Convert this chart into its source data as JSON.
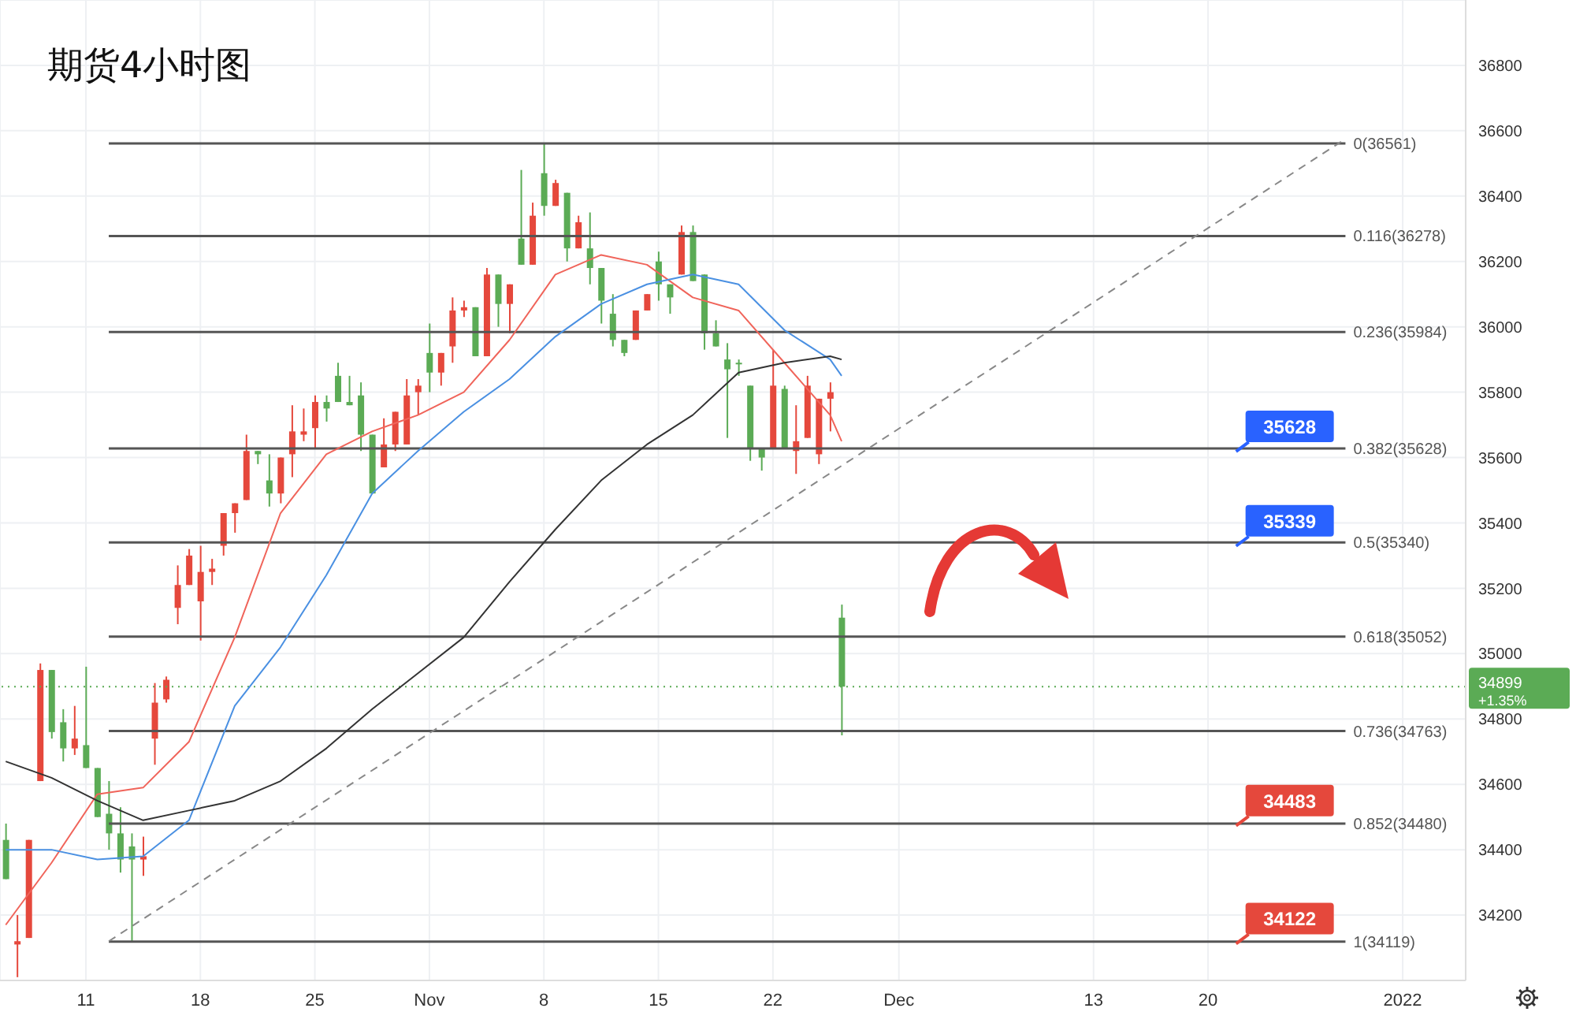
{
  "chart_data": {
    "type": "candlestick",
    "title": "期货4小时图",
    "categories": [
      null,
      null,
      null,
      null,
      null,
      null,
      null,
      "11",
      null,
      null,
      null,
      null,
      null,
      null,
      null,
      null,
      null,
      "18",
      null,
      null,
      null,
      null,
      null,
      null,
      null,
      null,
      null,
      "25",
      null,
      null,
      null,
      null,
      null,
      null,
      null,
      null,
      null,
      "Nov",
      null,
      null,
      null,
      null,
      null,
      null,
      null,
      null,
      null,
      "8",
      null,
      null,
      null,
      null,
      null,
      null,
      null,
      null,
      null,
      "15",
      null,
      null,
      null,
      null,
      null,
      null,
      null,
      null,
      null,
      "22",
      null,
      null,
      null,
      null,
      null,
      null,
      null,
      null,
      null,
      null,
      "Dec",
      null,
      null,
      null,
      null,
      null,
      null,
      null,
      null,
      null,
      null,
      null,
      null,
      null,
      null,
      null,
      null,
      "13",
      null,
      null,
      null,
      null,
      null,
      null,
      null,
      null,
      null,
      "20",
      null,
      null,
      null,
      null,
      null,
      null,
      null,
      null,
      null,
      null,
      null,
      null,
      null,
      null,
      null,
      null,
      "2022",
      null,
      null,
      null,
      null,
      null
    ],
    "ohlc": [
      [
        34430,
        34480,
        34310,
        34310
      ],
      [
        34110,
        34200,
        34010,
        34120
      ],
      [
        34130,
        34430,
        34130,
        34430
      ],
      [
        34610,
        34970,
        34610,
        34950
      ],
      [
        34950,
        34950,
        34740,
        34760
      ],
      [
        34790,
        34830,
        34670,
        34710
      ],
      [
        34710,
        34840,
        34690,
        34740
      ],
      [
        34720,
        34960,
        34650,
        34650
      ],
      [
        34650,
        34650,
        34500,
        34500
      ],
      [
        34510,
        34610,
        34400,
        34450
      ],
      [
        34450,
        34530,
        34330,
        34370
      ],
      [
        34410,
        34450,
        34120,
        34370
      ],
      [
        34370,
        34440,
        34320,
        34380
      ],
      [
        34740,
        34910,
        34660,
        34850
      ],
      [
        34860,
        34930,
        34850,
        34920
      ],
      [
        35140,
        35270,
        35090,
        35210
      ],
      [
        35210,
        35320,
        35210,
        35300
      ],
      [
        35160,
        35330,
        35040,
        35250
      ],
      [
        35250,
        35290,
        35210,
        35260
      ],
      [
        35330,
        35430,
        35300,
        35430
      ],
      [
        35430,
        35460,
        35370,
        35460
      ],
      [
        35470,
        35670,
        35470,
        35620
      ],
      [
        35620,
        35620,
        35580,
        35610
      ],
      [
        35530,
        35610,
        35450,
        35490
      ],
      [
        35490,
        35600,
        35460,
        35600
      ],
      [
        35610,
        35760,
        35540,
        35680
      ],
      [
        35670,
        35750,
        35650,
        35680
      ],
      [
        35690,
        35790,
        35630,
        35770
      ],
      [
        35770,
        35790,
        35710,
        35750
      ],
      [
        35850,
        35890,
        35770,
        35770
      ],
      [
        35770,
        35850,
        35760,
        35760
      ],
      [
        35790,
        35830,
        35620,
        35670
      ],
      [
        35670,
        35670,
        35490,
        35490
      ],
      [
        35570,
        35720,
        35570,
        35640
      ],
      [
        35640,
        35740,
        35620,
        35740
      ],
      [
        35640,
        35840,
        35640,
        35790
      ],
      [
        35800,
        35840,
        35730,
        35820
      ],
      [
        35920,
        36010,
        35800,
        35860
      ],
      [
        35860,
        35920,
        35820,
        35920
      ],
      [
        35940,
        36090,
        35890,
        36050
      ],
      [
        36050,
        36080,
        36030,
        36060
      ],
      [
        36060,
        36060,
        35910,
        35910
      ],
      [
        35910,
        36180,
        35910,
        36160
      ],
      [
        36160,
        36160,
        36000,
        36070
      ],
      [
        36070,
        36130,
        35980,
        36130
      ],
      [
        36270,
        36480,
        36190,
        36190
      ],
      [
        36190,
        36380,
        36190,
        36340
      ],
      [
        36470,
        36561,
        36340,
        36370
      ],
      [
        36370,
        36450,
        36370,
        36440
      ],
      [
        36410,
        36410,
        36200,
        36240
      ],
      [
        36240,
        36340,
        36240,
        36320
      ],
      [
        36240,
        36350,
        36130,
        36180
      ],
      [
        36180,
        36180,
        36010,
        36080
      ],
      [
        36040,
        36100,
        35940,
        35960
      ],
      [
        35960,
        35960,
        35910,
        35920
      ],
      [
        35960,
        36050,
        35960,
        36050
      ],
      [
        36050,
        36100,
        36050,
        36100
      ],
      [
        36200,
        36230,
        36080,
        36130
      ],
      [
        36130,
        36130,
        36040,
        36090
      ],
      [
        36160,
        36310,
        36160,
        36290
      ],
      [
        36290,
        36310,
        36140,
        36140
      ],
      [
        36160,
        36160,
        35930,
        35980
      ],
      [
        35980,
        36020,
        35940,
        35940
      ],
      [
        35900,
        35950,
        35660,
        35870
      ],
      [
        35890,
        35900,
        35850,
        35890
      ],
      [
        35820,
        35820,
        35590,
        35630
      ],
      [
        35630,
        35630,
        35560,
        35600
      ],
      [
        35630,
        35930,
        35630,
        35820
      ],
      [
        35810,
        35820,
        35630,
        35630
      ],
      [
        35620,
        35760,
        35550,
        35650
      ],
      [
        35660,
        35850,
        35660,
        35820
      ],
      [
        35610,
        35780,
        35580,
        35780
      ],
      [
        35780,
        35830,
        35680,
        35800
      ],
      [
        35110,
        35150,
        34750,
        34899
      ],
      null,
      null,
      null,
      null,
      null,
      null,
      null,
      null,
      null,
      null,
      null,
      null,
      null,
      null,
      null,
      null,
      null,
      null,
      null,
      null,
      null,
      null,
      null,
      null,
      null,
      null,
      null,
      null,
      null,
      null,
      null,
      null,
      null,
      null,
      null,
      null,
      null,
      null,
      null,
      null,
      null,
      null,
      null,
      null,
      null,
      null,
      null,
      null,
      null,
      null,
      null,
      null,
      null,
      null
    ],
    "colors": [
      "#5bab55",
      "#e5483c",
      "#e5483c",
      "#e5483c",
      "#5bab55",
      "#5bab55",
      "#e5483c",
      "#5bab55",
      "#5bab55",
      "#5bab55",
      "#5bab55",
      "#5bab55",
      "#e5483c",
      "#e5483c",
      "#e5483c",
      "#e5483c",
      "#e5483c",
      "#e5483c",
      "#e5483c",
      "#e5483c",
      "#e5483c",
      "#e5483c",
      "#5bab55",
      "#5bab55",
      "#e5483c",
      "#e5483c",
      "#e5483c",
      "#e5483c",
      "#5bab55",
      "#5bab55",
      "#5bab55",
      "#5bab55",
      "#5bab55",
      "#e5483c",
      "#e5483c",
      "#e5483c",
      "#e5483c",
      "#5bab55",
      "#e5483c",
      "#e5483c",
      "#e5483c",
      "#5bab55",
      "#e5483c",
      "#5bab55",
      "#e5483c",
      "#5bab55",
      "#e5483c",
      "#5bab55",
      "#e5483c",
      "#5bab55",
      "#e5483c",
      "#5bab55",
      "#5bab55",
      "#5bab55",
      "#5bab55",
      "#e5483c",
      "#e5483c",
      "#5bab55",
      "#5bab55",
      "#e5483c",
      "#5bab55",
      "#5bab55",
      "#5bab55",
      "#5bab55",
      "#5bab55",
      "#5bab55",
      "#5bab55",
      "#e5483c",
      "#5bab55",
      "#e5483c",
      "#e5483c",
      "#e5483c",
      "#e5483c",
      "#5bab55",
      null,
      null,
      null,
      null,
      null,
      null,
      null,
      null,
      null,
      null,
      null,
      null,
      null,
      null,
      null,
      null,
      null,
      null,
      null,
      null,
      null,
      null,
      null,
      null,
      null,
      null,
      null,
      null,
      null,
      null,
      null,
      null,
      null,
      null,
      null,
      null,
      null,
      null,
      null,
      null,
      null,
      null,
      null,
      null,
      null,
      null,
      null,
      null,
      null,
      null,
      null,
      null,
      null,
      null
    ],
    "series": [
      {
        "type": "line",
        "color": "#f0645a",
        "values": [
          34170,
          null,
          null,
          null,
          34360,
          null,
          null,
          null,
          34570,
          null,
          null,
          null,
          34590,
          null,
          null,
          null,
          34730,
          null,
          null,
          null,
          35050,
          null,
          null,
          null,
          35430,
          null,
          null,
          null,
          35610,
          null,
          null,
          null,
          35680,
          null,
          null,
          null,
          35730,
          null,
          null,
          null,
          35800,
          null,
          null,
          null,
          35960,
          null,
          null,
          null,
          36160,
          null,
          null,
          null,
          36220,
          null,
          null,
          null,
          36190,
          null,
          null,
          null,
          36090,
          null,
          null,
          null,
          36050,
          null,
          null,
          null,
          35890,
          null,
          null,
          null,
          35730,
          35650,
          null,
          null,
          null,
          null,
          null,
          null,
          null,
          null,
          null,
          null,
          null,
          null,
          null,
          null,
          null,
          null,
          null,
          null,
          null,
          null,
          null,
          null,
          null,
          null,
          null,
          null,
          null,
          null,
          null,
          null,
          null,
          null,
          null,
          null,
          null,
          null,
          null,
          null,
          null,
          null,
          null,
          null,
          null,
          null,
          null,
          null,
          null,
          null,
          null,
          null,
          null,
          null,
          null,
          null
        ]
      },
      {
        "type": "line",
        "color": "#4a90e2",
        "values": [
          34400,
          null,
          null,
          null,
          34400,
          null,
          null,
          null,
          34370,
          null,
          null,
          null,
          34380,
          null,
          null,
          null,
          34490,
          null,
          null,
          null,
          34840,
          null,
          null,
          null,
          35020,
          null,
          null,
          null,
          35240,
          null,
          null,
          null,
          35490,
          null,
          null,
          null,
          35620,
          null,
          null,
          null,
          35740,
          null,
          null,
          null,
          35840,
          null,
          null,
          null,
          35970,
          null,
          null,
          null,
          36070,
          null,
          null,
          null,
          36130,
          null,
          null,
          null,
          36160,
          null,
          null,
          null,
          36130,
          null,
          null,
          null,
          35990,
          null,
          null,
          null,
          35900,
          35850,
          null,
          null,
          null,
          null,
          null,
          null,
          null,
          null,
          null,
          null,
          null,
          null,
          null,
          null,
          null,
          null,
          null,
          null,
          null,
          null,
          null,
          null,
          null,
          null,
          null,
          null,
          null,
          null,
          null,
          null,
          null,
          null,
          null,
          null,
          null,
          null,
          null,
          null,
          null,
          null,
          null,
          null,
          null,
          null,
          null,
          null,
          null,
          null,
          null,
          null,
          null,
          null,
          null,
          null
        ]
      },
      {
        "type": "line",
        "color": "#333333",
        "values": [
          34670,
          null,
          null,
          null,
          34620,
          null,
          null,
          null,
          34550,
          null,
          null,
          null,
          34490,
          null,
          null,
          null,
          34520,
          null,
          null,
          null,
          34550,
          null,
          null,
          null,
          34610,
          null,
          null,
          null,
          34710,
          null,
          null,
          null,
          34830,
          null,
          null,
          null,
          34940,
          null,
          null,
          null,
          35050,
          null,
          null,
          null,
          35220,
          null,
          null,
          null,
          35380,
          null,
          null,
          null,
          35530,
          null,
          null,
          null,
          35640,
          null,
          null,
          null,
          35730,
          null,
          null,
          null,
          35860,
          null,
          null,
          null,
          35890,
          null,
          null,
          null,
          35910,
          35900,
          null,
          null,
          null,
          null,
          null,
          null,
          null,
          null,
          null,
          null,
          null,
          null,
          null,
          null,
          null,
          null,
          null,
          null,
          null,
          null,
          null,
          null,
          null,
          null,
          null,
          null,
          null,
          null,
          null,
          null,
          null,
          null,
          null,
          null,
          null,
          null,
          null,
          null,
          null,
          null,
          null,
          null,
          null,
          null,
          null,
          null,
          null,
          null,
          null,
          null,
          null,
          null,
          null,
          null
        ]
      },
      {
        "type": "line",
        "color": "#888888",
        "line_style": "dashed",
        "values": [
          null,
          null,
          null,
          null,
          null,
          null,
          null,
          null,
          null,
          34120,
          null,
          null,
          null,
          null,
          null,
          null,
          null,
          null,
          null,
          null,
          null,
          null,
          null,
          null,
          null,
          null,
          null,
          null,
          null,
          null,
          null,
          null,
          null,
          null,
          null,
          null,
          null,
          null,
          null,
          null,
          null,
          null,
          null,
          null,
          null,
          null,
          null,
          null,
          null,
          null,
          null,
          null,
          null,
          null,
          null,
          null,
          null,
          null,
          null,
          null,
          null,
          null,
          null,
          null,
          null,
          null,
          null,
          null,
          null,
          null,
          null,
          null,
          null,
          null,
          null,
          null,
          null,
          null,
          null,
          null,
          null,
          null,
          null,
          null,
          null,
          null,
          null,
          null,
          null,
          null,
          null,
          null,
          null,
          null,
          null,
          null,
          null,
          null,
          null,
          null,
          null,
          null,
          null,
          null,
          null,
          null,
          null,
          null,
          null,
          null,
          null,
          null,
          null,
          null,
          null,
          null,
          null,
          36575,
          null,
          null,
          null,
          null,
          null,
          null,
          null,
          null,
          null,
          null
        ]
      }
    ],
    "ylim": [
      34000,
      37000
    ],
    "yticks": [
      34200,
      34400,
      34600,
      34800,
      35000,
      35200,
      35400,
      35600,
      35800,
      36000,
      36200,
      36400,
      36600,
      36800
    ],
    "grid": true,
    "ref_lines": [
      {
        "axis": "y",
        "value": 36561,
        "label": "0(36561)",
        "color": "#555555",
        "line_style": "solid"
      },
      {
        "axis": "y",
        "value": 36278,
        "label": "0.116(36278)",
        "color": "#555555",
        "line_style": "solid"
      },
      {
        "axis": "y",
        "value": 35984,
        "label": "0.236(35984)",
        "color": "#555555",
        "line_style": "solid"
      },
      {
        "axis": "y",
        "value": 35628,
        "label": "0.382(35628)",
        "color": "#555555",
        "line_style": "solid"
      },
      {
        "axis": "y",
        "value": 35340,
        "label": "0.5(35340)",
        "color": "#555555",
        "line_style": "solid"
      },
      {
        "axis": "y",
        "value": 35052,
        "label": "0.618(35052)",
        "color": "#555555",
        "line_style": "solid"
      },
      {
        "axis": "y",
        "value": 34763,
        "label": "0.736(34763)",
        "color": "#555555",
        "line_style": "solid"
      },
      {
        "axis": "y",
        "value": 34480,
        "label": "0.852(34480)",
        "color": "#555555",
        "line_style": "solid"
      },
      {
        "axis": "y",
        "value": 34119,
        "label": "1(34119)",
        "color": "#555555",
        "line_style": "solid"
      },
      {
        "axis": "y",
        "value": 34899,
        "label": "34899",
        "color": "#5bab55",
        "line_style": "dotted"
      }
    ],
    "annotations": [
      {
        "text": "35628",
        "y": 35628
      },
      {
        "text": "35339",
        "y": 35339
      },
      {
        "text": "34483",
        "y": 34483
      },
      {
        "text": "34122",
        "y": 34122
      },
      "+1.35%"
    ]
  }
}
